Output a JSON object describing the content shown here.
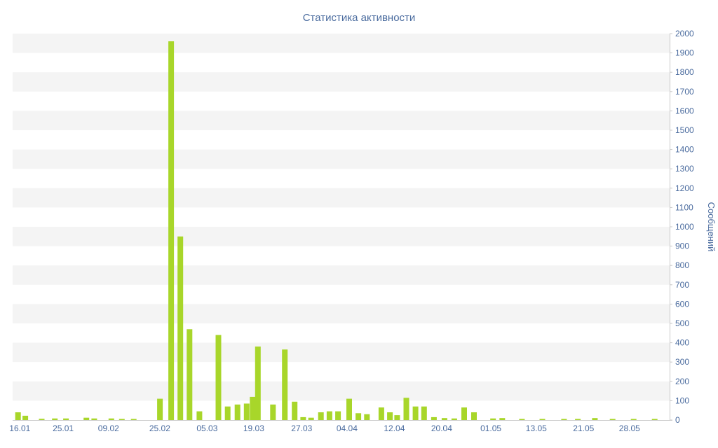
{
  "chart_data": {
    "type": "bar",
    "title": "Статистика активности",
    "ylabel": "Сообщений",
    "xlabel": "",
    "ylim": [
      0,
      2000
    ],
    "y_tick_step": 100,
    "y_ticks": [
      0,
      100,
      200,
      300,
      400,
      500,
      600,
      700,
      800,
      900,
      1000,
      1100,
      1200,
      1300,
      1400,
      1500,
      1600,
      1700,
      1800,
      1900,
      2000
    ],
    "legend": false,
    "grid": "alternating-horizontal-bands",
    "bar_color": "#a8d62a",
    "band_color": "#f4f4f4",
    "axis_color": "#c8c8c8",
    "text_color": "#4a6b9e",
    "x_ticks": [
      {
        "pos": 0.011,
        "label": "16.01"
      },
      {
        "pos": 0.077,
        "label": "25.01"
      },
      {
        "pos": 0.146,
        "label": "09.02"
      },
      {
        "pos": 0.224,
        "label": "25.02"
      },
      {
        "pos": 0.296,
        "label": "05.03"
      },
      {
        "pos": 0.367,
        "label": "19.03"
      },
      {
        "pos": 0.44,
        "label": "27.03"
      },
      {
        "pos": 0.509,
        "label": "04.04"
      },
      {
        "pos": 0.581,
        "label": "12.04"
      },
      {
        "pos": 0.653,
        "label": "20.04"
      },
      {
        "pos": 0.728,
        "label": "01.05"
      },
      {
        "pos": 0.797,
        "label": "13.05"
      },
      {
        "pos": 0.869,
        "label": "21.05"
      },
      {
        "pos": 0.939,
        "label": "28.05"
      }
    ],
    "bars": [
      {
        "pos": 0.004,
        "value": 40
      },
      {
        "pos": 0.015,
        "value": 22
      },
      {
        "pos": 0.04,
        "value": 6
      },
      {
        "pos": 0.06,
        "value": 8
      },
      {
        "pos": 0.077,
        "value": 8
      },
      {
        "pos": 0.108,
        "value": 12
      },
      {
        "pos": 0.12,
        "value": 8
      },
      {
        "pos": 0.146,
        "value": 8
      },
      {
        "pos": 0.162,
        "value": 5
      },
      {
        "pos": 0.18,
        "value": 5
      },
      {
        "pos": 0.22,
        "value": 110
      },
      {
        "pos": 0.237,
        "value": 1960
      },
      {
        "pos": 0.251,
        "value": 950
      },
      {
        "pos": 0.265,
        "value": 470
      },
      {
        "pos": 0.28,
        "value": 45
      },
      {
        "pos": 0.309,
        "value": 440
      },
      {
        "pos": 0.323,
        "value": 70
      },
      {
        "pos": 0.338,
        "value": 80
      },
      {
        "pos": 0.352,
        "value": 85
      },
      {
        "pos": 0.361,
        "value": 120
      },
      {
        "pos": 0.369,
        "value": 380
      },
      {
        "pos": 0.392,
        "value": 80
      },
      {
        "pos": 0.41,
        "value": 365
      },
      {
        "pos": 0.425,
        "value": 95
      },
      {
        "pos": 0.438,
        "value": 15
      },
      {
        "pos": 0.45,
        "value": 12
      },
      {
        "pos": 0.465,
        "value": 40
      },
      {
        "pos": 0.478,
        "value": 45
      },
      {
        "pos": 0.491,
        "value": 45
      },
      {
        "pos": 0.508,
        "value": 110
      },
      {
        "pos": 0.522,
        "value": 35
      },
      {
        "pos": 0.535,
        "value": 30
      },
      {
        "pos": 0.557,
        "value": 65
      },
      {
        "pos": 0.57,
        "value": 40
      },
      {
        "pos": 0.581,
        "value": 25
      },
      {
        "pos": 0.595,
        "value": 115
      },
      {
        "pos": 0.609,
        "value": 70
      },
      {
        "pos": 0.622,
        "value": 70
      },
      {
        "pos": 0.637,
        "value": 15
      },
      {
        "pos": 0.653,
        "value": 10
      },
      {
        "pos": 0.668,
        "value": 8
      },
      {
        "pos": 0.683,
        "value": 65
      },
      {
        "pos": 0.698,
        "value": 40
      },
      {
        "pos": 0.727,
        "value": 8
      },
      {
        "pos": 0.741,
        "value": 10
      },
      {
        "pos": 0.771,
        "value": 5
      },
      {
        "pos": 0.802,
        "value": 5
      },
      {
        "pos": 0.835,
        "value": 5
      },
      {
        "pos": 0.856,
        "value": 5
      },
      {
        "pos": 0.882,
        "value": 10
      },
      {
        "pos": 0.909,
        "value": 5
      },
      {
        "pos": 0.941,
        "value": 5
      },
      {
        "pos": 0.973,
        "value": 5
      }
    ]
  }
}
